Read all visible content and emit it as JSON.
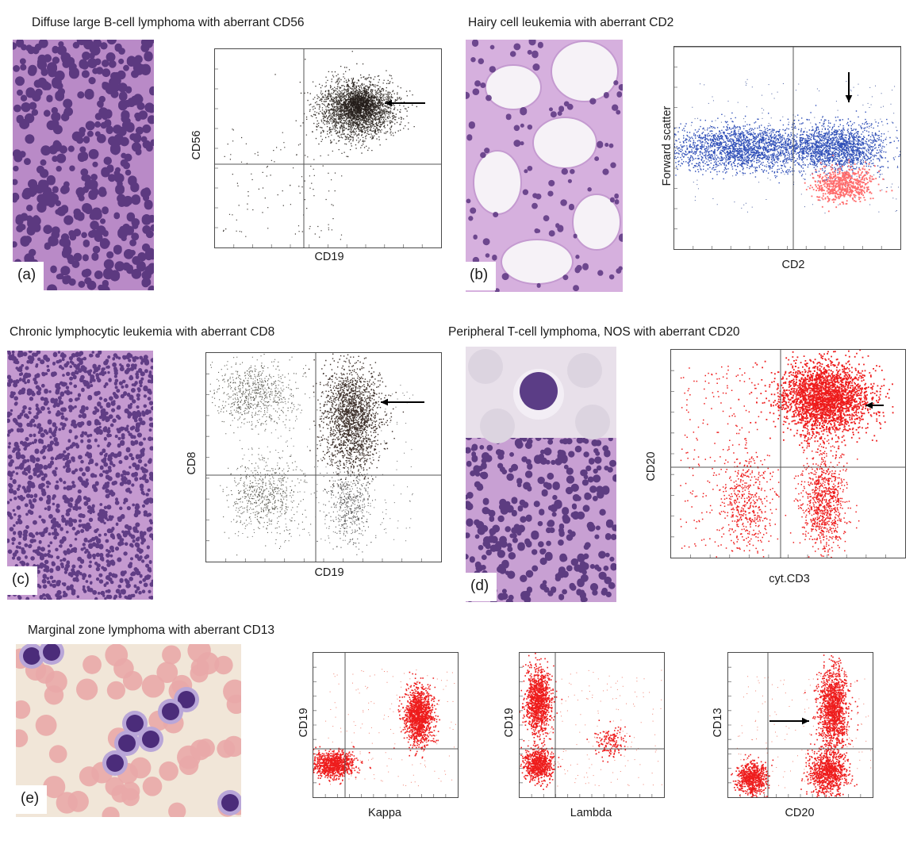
{
  "panels": {
    "a": {
      "tag": "(a)",
      "title": "Diffuse large B-cell lymphoma with aberrant CD56",
      "plot": {
        "xlabel": "CD19",
        "ylabel": "CD56"
      }
    },
    "b": {
      "tag": "(b)",
      "title": "Hairy cell leukemia with aberrant CD2",
      "plot": {
        "xlabel": "CD2",
        "ylabel": "Forward scatter"
      }
    },
    "c": {
      "tag": "(c)",
      "title": "Chronic lymphocytic leukemia with aberrant CD8",
      "plot": {
        "xlabel": "CD19",
        "ylabel": "CD8"
      }
    },
    "d": {
      "tag": "(d)",
      "title": "Peripheral T-cell lymphoma, NOS with aberrant CD20",
      "plot": {
        "xlabel": "cyt.CD3",
        "ylabel": "CD20"
      }
    },
    "e": {
      "tag": "(e)",
      "title": "Marginal zone lymphoma with aberrant CD13",
      "plots": [
        {
          "xlabel": "Kappa",
          "ylabel": "CD19"
        },
        {
          "xlabel": "Lambda",
          "ylabel": "CD19"
        },
        {
          "xlabel": "CD20",
          "ylabel": "CD13"
        }
      ]
    }
  },
  "colors": {
    "dots_dark": "#3a3530",
    "dots_blue": "#2f4fb8",
    "dots_pink": "#ff6b6b",
    "dots_red": "#ee1c1c",
    "he_stain": "#b98ac7",
    "nucleus": "#4b2a73",
    "rbc": "#e9a9a9"
  }
}
